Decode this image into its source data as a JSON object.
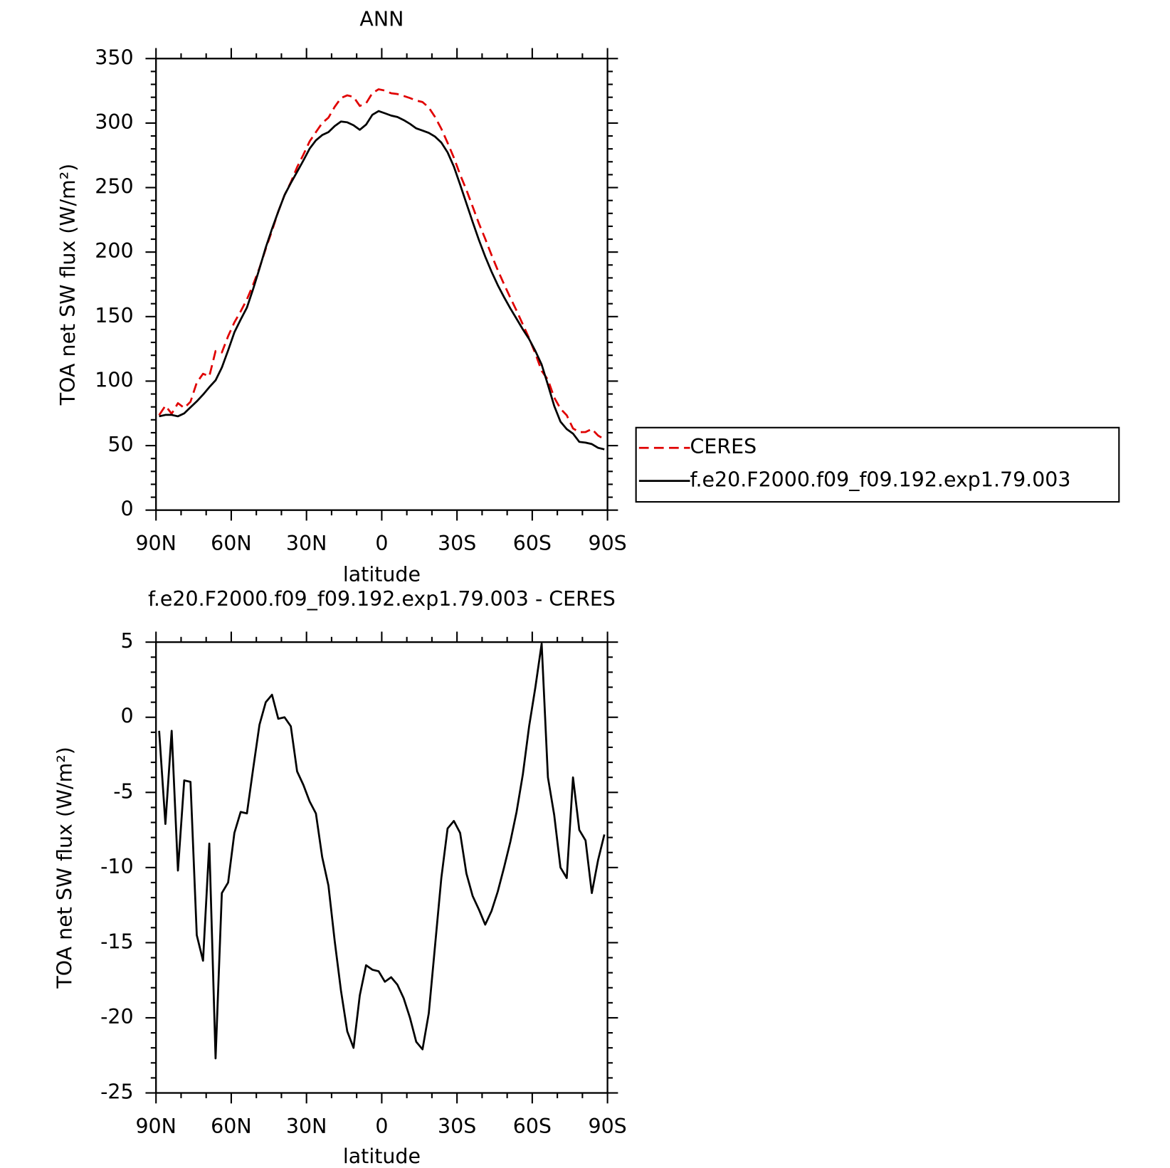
{
  "chart_data": [
    {
      "type": "line",
      "title": "ANN",
      "xlabel": "latitude",
      "ylabel": "TOA net SW flux (W/m²)",
      "x": [
        88.75,
        86.25,
        83.75,
        81.25,
        78.75,
        76.25,
        73.75,
        71.25,
        68.75,
        66.25,
        63.75,
        61.25,
        58.75,
        56.25,
        53.75,
        51.25,
        48.75,
        46.25,
        43.75,
        41.25,
        38.75,
        36.25,
        33.75,
        31.25,
        28.75,
        26.25,
        23.75,
        21.25,
        18.75,
        16.25,
        13.75,
        11.25,
        8.75,
        6.25,
        3.75,
        1.25,
        -1.25,
        -3.75,
        -6.25,
        -8.75,
        -11.25,
        -13.75,
        -16.25,
        -18.75,
        -21.25,
        -23.75,
        -26.25,
        -28.75,
        -31.25,
        -33.75,
        -36.25,
        -38.75,
        -41.25,
        -43.75,
        -46.25,
        -48.75,
        -51.25,
        -53.75,
        -56.25,
        -58.75,
        -61.25,
        -63.75,
        -66.25,
        -68.75,
        -71.25,
        -73.75,
        -76.25,
        -78.75,
        -81.25,
        -83.75,
        -86.25,
        -88.75
      ],
      "series": [
        {
          "name": "CERES",
          "color": "#e00000",
          "linestyle": "dashed",
          "values": [
            73.6,
            80.9,
            74.7,
            82.9,
            79.2,
            84.0,
            98.8,
            105.7,
            103.7,
            123.3,
            122.2,
            134.8,
            145.5,
            154.0,
            163.4,
            174.9,
            187.7,
            202.5,
            216.5,
            231.5,
            244.2,
            254.1,
            265.8,
            275.5,
            285.8,
            293.0,
            300.0,
            304.2,
            312.6,
            319.4,
            321.5,
            320.3,
            313.3,
            315.3,
            323.2,
            326.2,
            325.2,
            323.1,
            322.5,
            321.0,
            319.4,
            317.5,
            316.3,
            312.1,
            304.7,
            295.6,
            284.7,
            273.2,
            260.0,
            248.2,
            235.2,
            222.1,
            210.3,
            197.8,
            186.0,
            175.1,
            164.7,
            154.6,
            143.9,
            133.2,
            121.3,
            107.9,
            101.1,
            87.3,
            78.6,
            73.5,
            63.3,
            60.4,
            60.5,
            62.9,
            57.8,
            54.9
          ]
        },
        {
          "name": "f.e20.F2000.f09_f09.192.exp1.79.003",
          "color": "#000000",
          "linestyle": "solid",
          "values": [
            72.7,
            73.8,
            73.8,
            72.7,
            75.0,
            79.7,
            84.3,
            89.5,
            95.3,
            100.6,
            110.5,
            123.8,
            137.8,
            147.7,
            157.0,
            171.5,
            187.2,
            203.5,
            218.0,
            231.4,
            244.2,
            253.5,
            262.2,
            271.0,
            280.2,
            286.6,
            290.7,
            293.0,
            297.7,
            301.2,
            300.6,
            298.3,
            294.8,
            298.8,
            306.4,
            309.3,
            307.6,
            305.8,
            304.7,
            302.3,
            299.4,
            295.9,
            294.2,
            292.4,
            289.5,
            284.9,
            277.3,
            266.3,
            252.3,
            237.8,
            223.3,
            209.3,
            196.5,
            184.9,
            174.4,
            165.1,
            156.4,
            148.3,
            140.1,
            132.6,
            123.3,
            112.8,
            97.1,
            80.8,
            68.6,
            62.8,
            59.3,
            52.9,
            52.3,
            51.2,
            48.3,
            47.1
          ]
        }
      ],
      "xlim": [
        90,
        -90
      ],
      "xticks": [
        {
          "value": 90,
          "label": "90N"
        },
        {
          "value": 60,
          "label": "60N"
        },
        {
          "value": 30,
          "label": "30N"
        },
        0,
        {
          "value": -30,
          "label": "30S"
        },
        {
          "value": -60,
          "label": "60S"
        },
        {
          "value": -90,
          "label": "90S"
        }
      ],
      "ylim": [
        0,
        350
      ],
      "yticks": [
        0,
        50,
        100,
        150,
        200,
        250,
        300,
        350
      ],
      "legend": "right"
    },
    {
      "type": "line",
      "title": "f.e20.F2000.f09_f09.192.exp1.79.003 - CERES",
      "xlabel": "latitude",
      "ylabel": "TOA net SW flux (W/m²)",
      "x": [
        88.75,
        86.25,
        83.75,
        81.25,
        78.75,
        76.25,
        73.75,
        71.25,
        68.75,
        66.25,
        63.75,
        61.25,
        58.75,
        56.25,
        53.75,
        51.25,
        48.75,
        46.25,
        43.75,
        41.25,
        38.75,
        36.25,
        33.75,
        31.25,
        28.75,
        26.25,
        23.75,
        21.25,
        18.75,
        16.25,
        13.75,
        11.25,
        8.75,
        6.25,
        3.75,
        1.25,
        -1.25,
        -3.75,
        -6.25,
        -8.75,
        -11.25,
        -13.75,
        -16.25,
        -18.75,
        -21.25,
        -23.75,
        -26.25,
        -28.75,
        -31.25,
        -33.75,
        -36.25,
        -38.75,
        -41.25,
        -43.75,
        -46.25,
        -48.75,
        -51.25,
        -53.75,
        -56.25,
        -58.75,
        -61.25,
        -63.75,
        -66.25,
        -68.75,
        -71.25,
        -73.75,
        -76.25,
        -78.75,
        -81.25,
        -83.75,
        -86.25,
        -88.75
      ],
      "series": [
        {
          "color": "#000000",
          "linestyle": "solid",
          "values": [
            -0.9,
            -7.1,
            -0.9,
            -10.2,
            -4.2,
            -4.3,
            -14.5,
            -16.2,
            -8.4,
            -22.7,
            -11.7,
            -11.0,
            -7.7,
            -6.3,
            -6.4,
            -3.4,
            -0.5,
            1.0,
            1.5,
            -0.1,
            0.0,
            -0.6,
            -3.6,
            -4.5,
            -5.6,
            -6.4,
            -9.3,
            -11.2,
            -14.9,
            -18.2,
            -20.9,
            -22.0,
            -18.5,
            -16.5,
            -16.8,
            -16.9,
            -17.6,
            -17.3,
            -17.8,
            -18.7,
            -20.0,
            -21.6,
            -22.1,
            -19.7,
            -15.2,
            -10.7,
            -7.4,
            -6.9,
            -7.7,
            -10.4,
            -11.9,
            -12.8,
            -13.8,
            -12.9,
            -11.6,
            -10.0,
            -8.3,
            -6.3,
            -3.8,
            -0.6,
            2.0,
            4.9,
            -4.0,
            -6.5,
            -10.0,
            -10.7,
            -4.0,
            -7.5,
            -8.2,
            -11.7,
            -9.5,
            -7.8
          ]
        }
      ],
      "xlim": [
        90,
        -90
      ],
      "xticks": [
        {
          "value": 90,
          "label": "90N"
        },
        {
          "value": 60,
          "label": "60N"
        },
        {
          "value": 30,
          "label": "30N"
        },
        0,
        {
          "value": -30,
          "label": "30S"
        },
        {
          "value": -60,
          "label": "60S"
        },
        {
          "value": -90,
          "label": "90S"
        }
      ],
      "ylim": [
        -25,
        5
      ],
      "yticks": [
        -25,
        -20,
        -15,
        -10,
        -5,
        0,
        5
      ]
    }
  ]
}
